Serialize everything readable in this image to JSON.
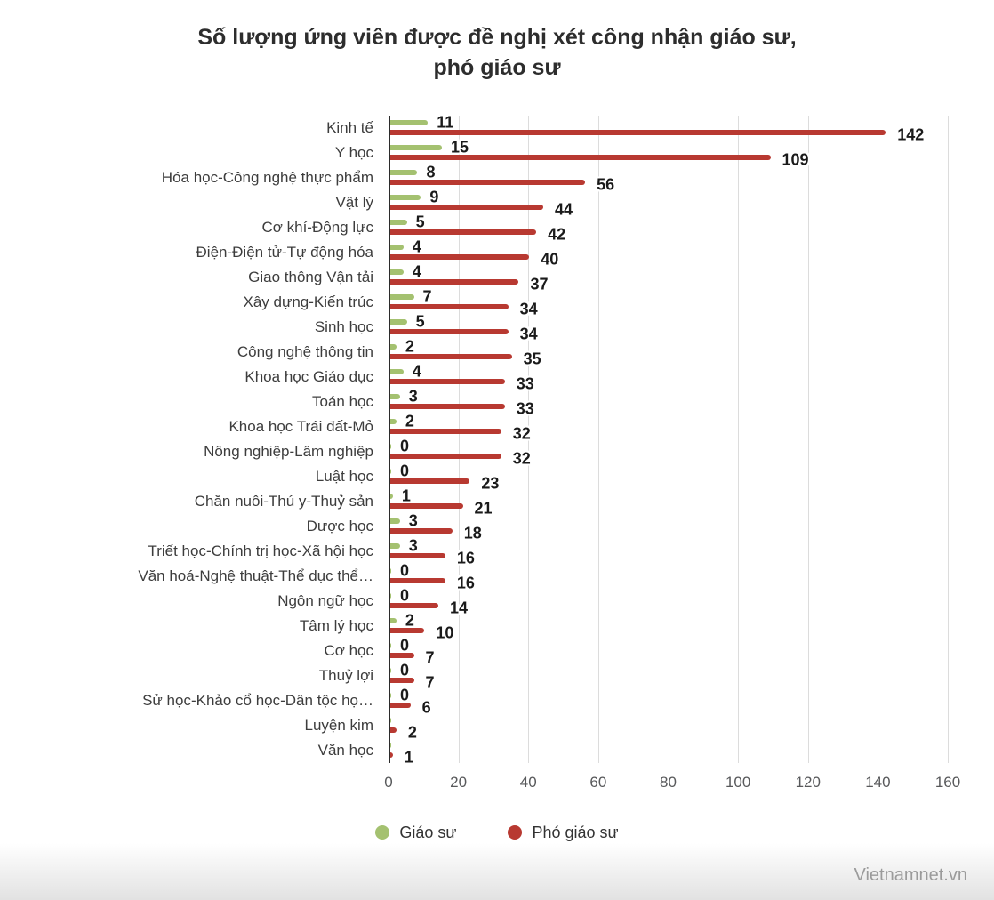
{
  "title": {
    "line1": "Số lượng ứng viên được đề nghị xét công nhận giáo sư,",
    "line2": "phó giáo sư"
  },
  "watermark": "Vietnamnet.vn",
  "chart_data": {
    "type": "bar",
    "orientation": "horizontal",
    "title": "Số lượng ứng viên được đề nghị xét công nhận giáo sư, phó giáo sư",
    "xlabel": "",
    "ylabel": "",
    "xlim": [
      0,
      160
    ],
    "xticks": [
      0,
      20,
      40,
      60,
      80,
      100,
      120,
      140,
      160
    ],
    "grid": true,
    "legend_position": "bottom",
    "categories": [
      "Kinh tế",
      "Y học",
      "Hóa học-Công nghệ thực phẩm",
      "Vật lý",
      "Cơ khí-Động lực",
      "Điện-Điện tử-Tự động hóa",
      "Giao thông Vận tải",
      "Xây dựng-Kiến trúc",
      "Sinh học",
      "Công nghệ thông tin",
      "Khoa học Giáo dục",
      "Toán học",
      "Khoa học Trái đất-Mỏ",
      "Nông nghiệp-Lâm nghiệp",
      "Luật học",
      "Chăn nuôi-Thú y-Thuỷ sản",
      "Dược học",
      "Triết học-Chính trị học-Xã hội học",
      "Văn hoá-Nghệ thuật-Thể dục thể…",
      "Ngôn ngữ học",
      "Tâm lý học",
      "Cơ học",
      "Thuỷ lợi",
      "Sử học-Khảo cổ học-Dân tộc họ…",
      "Luyện kim",
      "Văn học"
    ],
    "series": [
      {
        "name": "Giáo sư",
        "color": "#a4c170",
        "values": [
          11,
          15,
          8,
          9,
          5,
          4,
          4,
          7,
          5,
          2,
          4,
          3,
          2,
          0,
          0,
          1,
          3,
          3,
          0,
          0,
          2,
          0,
          0,
          0,
          0,
          0
        ],
        "labels": [
          "11",
          "15",
          "8",
          "9",
          "5",
          "4",
          "4",
          "7",
          "5",
          "2",
          "4",
          "3",
          "2",
          "0",
          "0",
          "1",
          "3",
          "3",
          "0",
          "0",
          "2",
          "0",
          "0",
          "0",
          "",
          ""
        ]
      },
      {
        "name": "Phó giáo sư",
        "color": "#b83931",
        "values": [
          142,
          109,
          56,
          44,
          42,
          40,
          37,
          34,
          34,
          35,
          33,
          33,
          32,
          32,
          23,
          21,
          18,
          16,
          16,
          14,
          10,
          7,
          7,
          6,
          2,
          1
        ],
        "labels": [
          "142",
          "109",
          "56",
          "44",
          "42",
          "40",
          "37",
          "34",
          "34",
          "35",
          "33",
          "33",
          "32",
          "32",
          "23",
          "21",
          "18",
          "16",
          "16",
          "14",
          "10",
          "7",
          "7",
          "6",
          "2",
          "1"
        ]
      }
    ]
  }
}
